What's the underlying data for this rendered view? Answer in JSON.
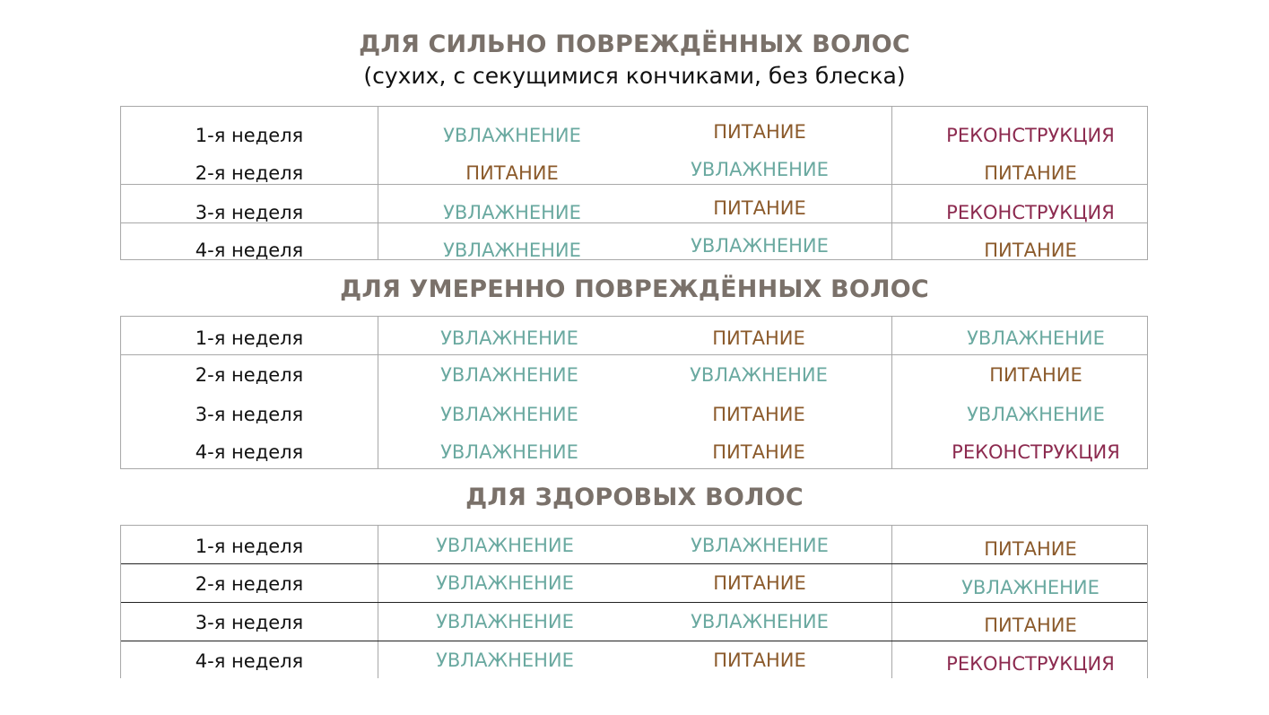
{
  "colors": {
    "heading": "#7a716a",
    "moisturizing": "#6aa9a0",
    "nutrition": "#8b5a2b",
    "reconstruction": "#8c2a4f"
  },
  "sections": [
    {
      "title": "ДЛЯ СИЛЬНО ПОВРЕЖДЁННЫХ ВОЛОС",
      "subtitle": "(сухих, с секущимися кончиками, без блеска)",
      "rows": [
        {
          "week": "1-я неделя",
          "cells": [
            {
              "text": "УВЛАЖНЕНИЕ",
              "type": "moisturizing"
            },
            {
              "text": "ПИТАНИЕ",
              "type": "nutrition"
            },
            {
              "text": "РЕКОНСТРУКЦИЯ",
              "type": "reconstruction"
            }
          ]
        },
        {
          "week": "2-я неделя",
          "cells": [
            {
              "text": "ПИТАНИЕ",
              "type": "nutrition"
            },
            {
              "text": "УВЛАЖНЕНИЕ",
              "type": "moisturizing"
            },
            {
              "text": "ПИТАНИЕ",
              "type": "nutrition"
            }
          ]
        },
        {
          "week": "3-я неделя",
          "cells": [
            {
              "text": "УВЛАЖНЕНИЕ",
              "type": "moisturizing"
            },
            {
              "text": "ПИТАНИЕ",
              "type": "nutrition"
            },
            {
              "text": "РЕКОНСТРУКЦИЯ",
              "type": "reconstruction"
            }
          ]
        },
        {
          "week": "4-я неделя",
          "cells": [
            {
              "text": "УВЛАЖНЕНИЕ",
              "type": "moisturizing"
            },
            {
              "text": "УВЛАЖНЕНИЕ",
              "type": "moisturizing"
            },
            {
              "text": "ПИТАНИЕ",
              "type": "nutrition"
            }
          ]
        }
      ]
    },
    {
      "title": "ДЛЯ УМЕРЕННО ПОВРЕЖДЁННЫХ ВОЛОС",
      "rows": [
        {
          "week": "1-я неделя",
          "cells": [
            {
              "text": "УВЛАЖНЕНИЕ",
              "type": "moisturizing"
            },
            {
              "text": "ПИТАНИЕ",
              "type": "nutrition"
            },
            {
              "text": "УВЛАЖНЕНИЕ",
              "type": "moisturizing"
            }
          ]
        },
        {
          "week": "2-я неделя",
          "cells": [
            {
              "text": "УВЛАЖНЕНИЕ",
              "type": "moisturizing"
            },
            {
              "text": "УВЛАЖНЕНИЕ",
              "type": "moisturizing"
            },
            {
              "text": "ПИТАНИЕ",
              "type": "nutrition"
            }
          ]
        },
        {
          "week": "3-я неделя",
          "cells": [
            {
              "text": "УВЛАЖНЕНИЕ",
              "type": "moisturizing"
            },
            {
              "text": "ПИТАНИЕ",
              "type": "nutrition"
            },
            {
              "text": "УВЛАЖНЕНИЕ",
              "type": "moisturizing"
            }
          ]
        },
        {
          "week": "4-я неделя",
          "cells": [
            {
              "text": "УВЛАЖНЕНИЕ",
              "type": "moisturizing"
            },
            {
              "text": "ПИТАНИЕ",
              "type": "nutrition"
            },
            {
              "text": "РЕКОНСТРУКЦИЯ",
              "type": "reconstruction"
            }
          ]
        }
      ]
    },
    {
      "title": "ДЛЯ ЗДОРОВЫХ ВОЛОС",
      "rows": [
        {
          "week": "1-я неделя",
          "cells": [
            {
              "text": "УВЛАЖНЕНИЕ",
              "type": "moisturizing"
            },
            {
              "text": "УВЛАЖНЕНИЕ",
              "type": "moisturizing"
            },
            {
              "text": "ПИТАНИЕ",
              "type": "nutrition"
            }
          ]
        },
        {
          "week": "2-я неделя",
          "cells": [
            {
              "text": "УВЛАЖНЕНИЕ",
              "type": "moisturizing"
            },
            {
              "text": "ПИТАНИЕ",
              "type": "nutrition"
            },
            {
              "text": "УВЛАЖНЕНИЕ",
              "type": "moisturizing"
            }
          ]
        },
        {
          "week": "3-я неделя",
          "cells": [
            {
              "text": "УВЛАЖНЕНИЕ",
              "type": "moisturizing"
            },
            {
              "text": "УВЛАЖНЕНИЕ",
              "type": "moisturizing"
            },
            {
              "text": "ПИТАНИЕ",
              "type": "nutrition"
            }
          ]
        },
        {
          "week": "4-я неделя",
          "cells": [
            {
              "text": "УВЛАЖНЕНИЕ",
              "type": "moisturizing"
            },
            {
              "text": "ПИТАНИЕ",
              "type": "nutrition"
            },
            {
              "text": "РЕКОНСТРУКЦИЯ",
              "type": "reconstruction"
            }
          ]
        }
      ]
    }
  ]
}
